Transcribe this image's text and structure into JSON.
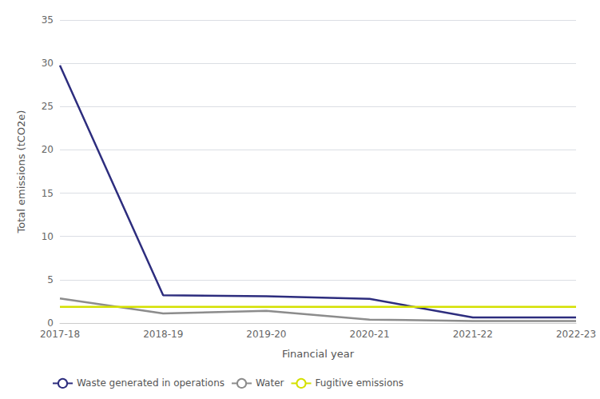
{
  "chart_data": {
    "type": "line",
    "xlabel": "Financial year",
    "ylabel": "Total emissions (tCO2e)",
    "categories": [
      "2017-18",
      "2018-19",
      "2019-20",
      "2020-21",
      "2021-22",
      "2022-23"
    ],
    "series": [
      {
        "name": "Waste generated in operations",
        "color": "#2d2d7e",
        "values": [
          29.76,
          3.2,
          3.1,
          2.8,
          0.64,
          0.64
        ]
      },
      {
        "name": "Water",
        "color": "#8c8c8c",
        "values": [
          2.85,
          1.1,
          1.4,
          0.4,
          0.23,
          0.23
        ]
      },
      {
        "name": "Fugitive emissions",
        "color": "#d4e000",
        "values": [
          1.86,
          1.86,
          1.86,
          1.86,
          1.86,
          1.86
        ]
      }
    ],
    "ylim": [
      0,
      35
    ],
    "yticks": [
      0,
      5,
      10,
      15,
      20,
      25,
      30,
      35
    ],
    "grid": true,
    "legend": "bottom"
  }
}
